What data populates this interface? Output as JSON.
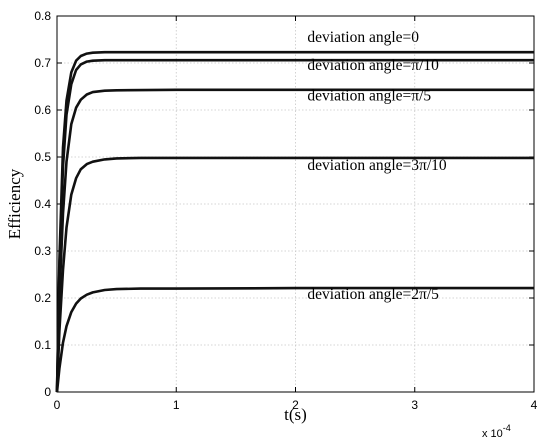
{
  "chart_data": {
    "type": "line",
    "title": "",
    "xlabel": "t(s)",
    "ylabel": "Efficiency",
    "x_multiplier_label": "x 10",
    "x_multiplier_exp": "-4",
    "xlim": [
      0,
      4
    ],
    "ylim": [
      0,
      0.8
    ],
    "xticks": [
      "0",
      "1",
      "2",
      "3",
      "4"
    ],
    "yticks": [
      "0",
      "0.1",
      "0.2",
      "0.3",
      "0.4",
      "0.5",
      "0.6",
      "0.7",
      "0.8"
    ],
    "grid": true,
    "series": [
      {
        "name": "deviation angle=0",
        "x": [
          0,
          0.02,
          0.05,
          0.08,
          0.12,
          0.16,
          0.2,
          0.25,
          0.3,
          0.4,
          0.5,
          1,
          2,
          3,
          4
        ],
        "y": [
          0,
          0.28,
          0.52,
          0.62,
          0.68,
          0.705,
          0.715,
          0.72,
          0.722,
          0.723,
          0.723,
          0.723,
          0.723,
          0.723,
          0.723
        ]
      },
      {
        "name": "deviation angle=π/10",
        "x": [
          0,
          0.02,
          0.05,
          0.08,
          0.12,
          0.16,
          0.2,
          0.25,
          0.3,
          0.4,
          0.5,
          1,
          2,
          3,
          4
        ],
        "y": [
          0,
          0.26,
          0.48,
          0.59,
          0.655,
          0.685,
          0.697,
          0.703,
          0.705,
          0.706,
          0.706,
          0.706,
          0.706,
          0.706,
          0.706
        ]
      },
      {
        "name": "deviation angle=π/5",
        "x": [
          0,
          0.02,
          0.05,
          0.08,
          0.12,
          0.16,
          0.2,
          0.25,
          0.3,
          0.4,
          0.5,
          1,
          2,
          3,
          4
        ],
        "y": [
          0,
          0.2,
          0.38,
          0.49,
          0.57,
          0.605,
          0.622,
          0.633,
          0.638,
          0.641,
          0.642,
          0.643,
          0.643,
          0.643,
          0.643
        ]
      },
      {
        "name": "deviation angle=3π/10",
        "x": [
          0,
          0.02,
          0.05,
          0.08,
          0.12,
          0.16,
          0.2,
          0.25,
          0.3,
          0.4,
          0.5,
          0.7,
          1,
          2,
          3,
          4
        ],
        "y": [
          0,
          0.13,
          0.26,
          0.35,
          0.42,
          0.455,
          0.474,
          0.485,
          0.49,
          0.495,
          0.497,
          0.498,
          0.498,
          0.498,
          0.498,
          0.498
        ]
      },
      {
        "name": "deviation angle=2π/5",
        "x": [
          0,
          0.02,
          0.05,
          0.08,
          0.12,
          0.16,
          0.2,
          0.25,
          0.3,
          0.4,
          0.5,
          0.7,
          1,
          2,
          3,
          4
        ],
        "y": [
          0,
          0.05,
          0.105,
          0.14,
          0.17,
          0.188,
          0.199,
          0.207,
          0.212,
          0.217,
          0.219,
          0.22,
          0.22,
          0.221,
          0.221,
          0.221
        ]
      }
    ],
    "annotations": [
      {
        "text": "deviation angle=0",
        "x": 2.1,
        "y": 0.745
      },
      {
        "text": "deviation angle=π/10",
        "x": 2.1,
        "y": 0.685
      },
      {
        "text": "deviation angle=π/5",
        "x": 2.1,
        "y": 0.62
      },
      {
        "text": "deviation angle=3π/10",
        "x": 2.1,
        "y": 0.472
      },
      {
        "text": "deviation angle=2π/5",
        "x": 2.1,
        "y": 0.198
      }
    ]
  }
}
